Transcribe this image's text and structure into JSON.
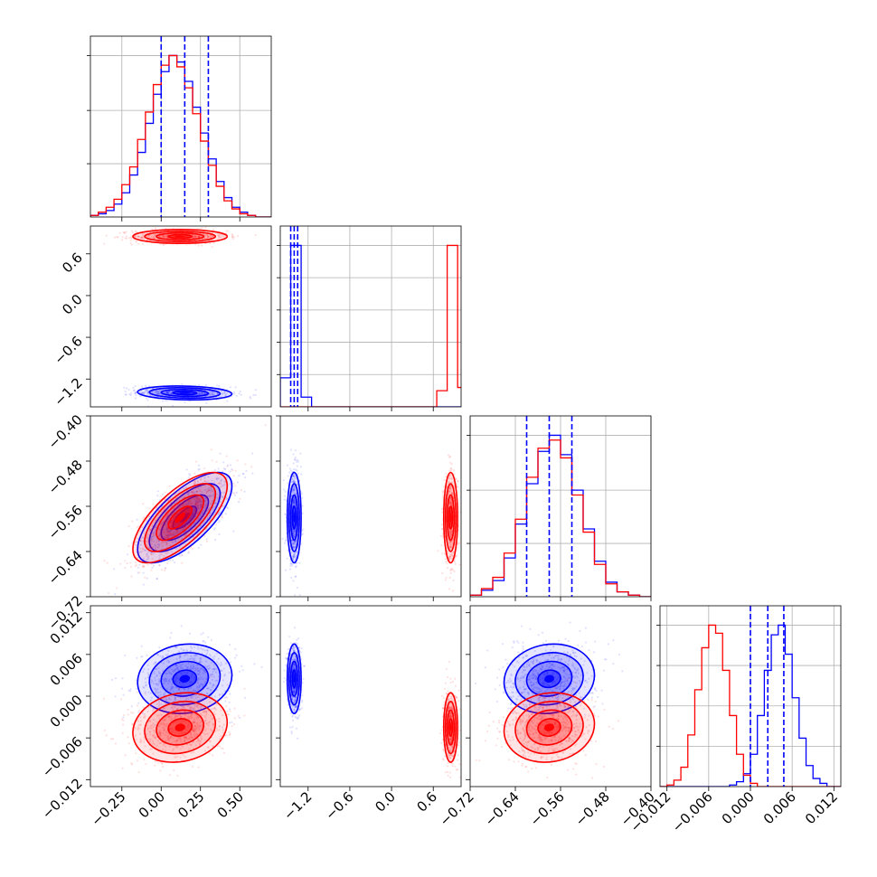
{
  "chart_data": {
    "type": "corner",
    "grid": true,
    "series": [
      {
        "name": "",
        "color": "#0000ff",
        "role": "truth-lines-and-blue-posterior"
      },
      {
        "name": "",
        "color": "#ff0000",
        "role": "red-posterior"
      }
    ],
    "params": [
      {
        "ticks": [
          -0.25,
          0.0,
          0.25,
          0.5
        ],
        "tick_labels": [
          "−0.25",
          "0.00",
          "0.25",
          "0.50"
        ],
        "range": [
          -0.45,
          0.7
        ]
      },
      {
        "ticks": [
          -1.2,
          -0.6,
          0.0,
          0.6
        ],
        "tick_labels": [
          "−1.2",
          "−0.6",
          "0.0",
          "0.6"
        ],
        "range": [
          -1.6,
          1.0
        ]
      },
      {
        "ticks": [
          -0.72,
          -0.64,
          -0.56,
          -0.48,
          -0.4
        ],
        "tick_labels": [
          "−0.72",
          "−0.64",
          "−0.56",
          "−0.48",
          "−0.40"
        ],
        "range": [
          -0.72,
          -0.4
        ]
      },
      {
        "ticks": [
          -0.012,
          -0.006,
          0.0,
          0.006,
          0.012
        ],
        "tick_labels": [
          "−0.012",
          "−0.006",
          "0.000",
          "0.006",
          "0.012"
        ],
        "range": [
          -0.013,
          0.013
        ]
      }
    ],
    "blue": {
      "means": [
        0.15,
        -1.4,
        -0.58,
        0.0025
      ],
      "sds": [
        0.15,
        0.05,
        0.04,
        0.0025
      ],
      "quantile_lines": [
        [
          0.0,
          0.15,
          0.3
        ],
        [
          -1.45,
          -1.4,
          -1.35
        ],
        [
          -0.62,
          -0.58,
          -0.54
        ],
        [
          0.0,
          0.0025,
          0.0048
        ]
      ]
    },
    "red": {
      "means": [
        0.12,
        0.85,
        -0.58,
        -0.0045
      ],
      "sds": [
        0.15,
        0.05,
        0.04,
        0.0025
      ]
    },
    "panels": {
      "diag": [
        {
          "param": 0,
          "y_ticks": [
            0.33,
            0.66,
            1.0
          ],
          "bins": [
            -0.45,
            -0.4,
            -0.35,
            -0.3,
            -0.25,
            -0.2,
            -0.15,
            -0.1,
            -0.05,
            0.0,
            0.05,
            0.1,
            0.15,
            0.2,
            0.25,
            0.3,
            0.35,
            0.4,
            0.45,
            0.5,
            0.55,
            0.6,
            0.65,
            0.7
          ],
          "blue": [
            0.01,
            0.02,
            0.04,
            0.08,
            0.15,
            0.26,
            0.4,
            0.58,
            0.76,
            0.9,
            1.0,
            0.96,
            0.84,
            0.68,
            0.52,
            0.36,
            0.22,
            0.12,
            0.06,
            0.03,
            0.01,
            0.0,
            0.0
          ],
          "red": [
            0.01,
            0.03,
            0.06,
            0.11,
            0.2,
            0.31,
            0.48,
            0.65,
            0.82,
            0.94,
            1.0,
            0.93,
            0.8,
            0.64,
            0.47,
            0.32,
            0.19,
            0.1,
            0.05,
            0.02,
            0.01,
            0.0,
            0.0
          ]
        },
        {
          "param": 1,
          "y_ticks": [
            0.2,
            0.4,
            0.6,
            0.8,
            1.0
          ],
          "bins": [
            -1.6,
            -1.45,
            -1.3,
            -1.15,
            -1.0,
            -0.85,
            -0.7,
            -0.55,
            -0.4,
            -0.25,
            -0.1,
            0.05,
            0.2,
            0.35,
            0.5,
            0.65,
            0.8,
            0.95,
            1.0
          ],
          "blue": [
            0.18,
            1.0,
            0.06,
            0,
            0,
            0,
            0,
            0,
            0,
            0,
            0,
            0,
            0,
            0,
            0,
            0,
            0,
            0
          ],
          "red": [
            0,
            0,
            0,
            0,
            0,
            0,
            0,
            0,
            0,
            0,
            0,
            0,
            0,
            0,
            0,
            0.1,
            1.0,
            0.12
          ]
        },
        {
          "param": 2,
          "y_ticks": [
            0.33,
            0.66,
            1.0
          ],
          "bins": [
            -0.72,
            -0.7,
            -0.68,
            -0.66,
            -0.64,
            -0.62,
            -0.6,
            -0.58,
            -0.56,
            -0.54,
            -0.52,
            -0.5,
            -0.48,
            -0.46,
            -0.44,
            -0.42,
            -0.4
          ],
          "blue": [
            0.01,
            0.04,
            0.1,
            0.24,
            0.45,
            0.7,
            0.9,
            1.0,
            0.88,
            0.66,
            0.42,
            0.22,
            0.09,
            0.03,
            0.01,
            0.0
          ],
          "red": [
            0.01,
            0.05,
            0.12,
            0.27,
            0.48,
            0.74,
            0.92,
            0.97,
            0.86,
            0.63,
            0.4,
            0.2,
            0.08,
            0.03,
            0.01,
            0.0
          ]
        },
        {
          "param": 3,
          "y_ticks": [
            0.25,
            0.5,
            0.75,
            1.0
          ],
          "bins": [
            -0.013,
            -0.012,
            -0.011,
            -0.01,
            -0.009,
            -0.008,
            -0.007,
            -0.006,
            -0.005,
            -0.004,
            -0.003,
            -0.002,
            -0.001,
            0.0,
            0.001,
            0.002,
            0.003,
            0.004,
            0.005,
            0.006,
            0.007,
            0.008,
            0.009,
            0.01,
            0.011,
            0.012,
            0.013
          ],
          "blue": [
            0,
            0,
            0,
            0,
            0,
            0,
            0,
            0,
            0,
            0,
            0.01,
            0.03,
            0.08,
            0.2,
            0.44,
            0.72,
            0.94,
            1.0,
            0.82,
            0.55,
            0.3,
            0.13,
            0.05,
            0.02,
            0.0,
            0.0
          ],
          "red": [
            0,
            0.01,
            0.04,
            0.12,
            0.32,
            0.6,
            0.86,
            1.0,
            0.95,
            0.72,
            0.44,
            0.2,
            0.07,
            0.02,
            0.0,
            0,
            0,
            0,
            0,
            0,
            0,
            0,
            0,
            0,
            0,
            0
          ]
        }
      ],
      "offdiag_pairs": [
        [
          1,
          0
        ],
        [
          2,
          0
        ],
        [
          2,
          1
        ],
        [
          3,
          0
        ],
        [
          3,
          1
        ],
        [
          3,
          2
        ]
      ],
      "correlations": {
        "1-0": {
          "blue": -0.15,
          "red": 0.0
        },
        "2-0": {
          "blue": 0.7,
          "red": 0.7
        },
        "2-1": {
          "blue": 0.0,
          "red": 0.0
        },
        "3-0": {
          "blue": 0.1,
          "red": 0.15
        },
        "3-1": {
          "blue": 0.0,
          "red": 0.0
        },
        "3-2": {
          "blue": 0.1,
          "red": 0.1
        }
      }
    }
  }
}
